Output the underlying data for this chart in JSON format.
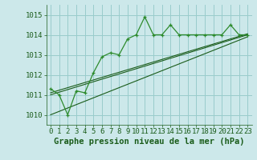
{
  "title": "Graphe pression niveau de la mer (hPa)",
  "background_color": "#cce8ea",
  "grid_color": "#99cccc",
  "line_color": "#1a5c1a",
  "line_color2": "#2d8b2d",
  "xlim": [
    -0.5,
    23.5
  ],
  "ylim": [
    1009.5,
    1015.5
  ],
  "yticks": [
    1010,
    1011,
    1012,
    1013,
    1014,
    1015
  ],
  "xticks": [
    0,
    1,
    2,
    3,
    4,
    5,
    6,
    7,
    8,
    9,
    10,
    11,
    12,
    13,
    14,
    15,
    16,
    17,
    18,
    19,
    20,
    21,
    22,
    23
  ],
  "series1": [
    1011.3,
    1011.0,
    1010.0,
    1011.2,
    1011.1,
    1012.1,
    1012.9,
    1013.1,
    1013.0,
    1013.8,
    1014.0,
    1014.9,
    1014.0,
    1014.0,
    1014.5,
    1014.0,
    1014.0,
    1014.0,
    1014.0,
    1014.0,
    1014.0,
    1014.5,
    1014.0,
    1014.0
  ],
  "trend1": [
    1011.0,
    1014.0
  ],
  "trend1_x": [
    0,
    23
  ],
  "trend2": [
    1010.0,
    1013.9
  ],
  "trend2_x": [
    0,
    23
  ],
  "trend3": [
    1011.1,
    1014.05
  ],
  "trend3_x": [
    0,
    23
  ],
  "title_fontsize": 7.5,
  "tick_fontsize": 6.5
}
